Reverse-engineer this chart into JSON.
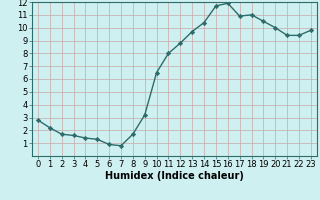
{
  "x": [
    0,
    1,
    2,
    3,
    4,
    5,
    6,
    7,
    8,
    9,
    10,
    11,
    12,
    13,
    14,
    15,
    16,
    17,
    18,
    19,
    20,
    21,
    22,
    23
  ],
  "y": [
    2.8,
    2.2,
    1.7,
    1.6,
    1.4,
    1.3,
    0.9,
    0.8,
    1.7,
    3.2,
    6.5,
    8.0,
    8.8,
    9.7,
    10.4,
    11.7,
    11.9,
    10.9,
    11.0,
    10.5,
    10.0,
    9.4,
    9.4,
    9.8
  ],
  "line_color": "#2e6b6b",
  "marker": "D",
  "marker_size": 2.2,
  "line_width": 1.0,
  "bg_color": "#cff0f0",
  "grid_color": "#c8a8a8",
  "xlabel": "Humidex (Indice chaleur)",
  "xlabel_fontsize": 7,
  "tick_fontsize": 6,
  "xlim": [
    -0.5,
    23.5
  ],
  "ylim": [
    0,
    12
  ],
  "yticks": [
    1,
    2,
    3,
    4,
    5,
    6,
    7,
    8,
    9,
    10,
    11,
    12
  ],
  "xticks": [
    0,
    1,
    2,
    3,
    4,
    5,
    6,
    7,
    8,
    9,
    10,
    11,
    12,
    13,
    14,
    15,
    16,
    17,
    18,
    19,
    20,
    21,
    22,
    23
  ]
}
